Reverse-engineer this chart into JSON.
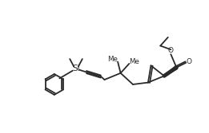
{
  "bg_color": "#ffffff",
  "line_color": "#2a2a2a",
  "lw": 1.3,
  "figsize": [
    2.61,
    1.67
  ],
  "dpi": 100,
  "xlim": [
    0,
    10.5
  ],
  "ylim": [
    0,
    7
  ]
}
